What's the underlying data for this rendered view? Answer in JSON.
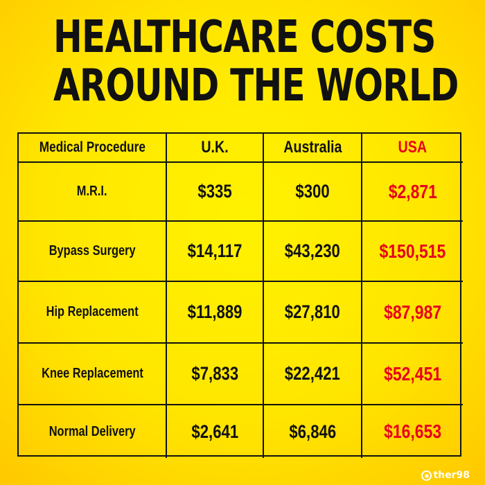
{
  "title": {
    "line1": "HEALTHCARE COSTS",
    "line2": "AROUND THE WORLD"
  },
  "colors": {
    "background": "#ffe600",
    "text": "#111111",
    "highlight": "#e8001c"
  },
  "chart_data": {
    "type": "table",
    "columns": [
      "Medical Procedure",
      "U.K.",
      "Australia",
      "USA"
    ],
    "rows": [
      {
        "procedure": "M.R.I.",
        "uk": "$335",
        "australia": "$300",
        "usa": "$2,871"
      },
      {
        "procedure": "Bypass Surgery",
        "uk": "$14,117",
        "australia": "$43,230",
        "usa": "$150,515"
      },
      {
        "procedure": "Hip Replacement",
        "uk": "$11,889",
        "australia": "$27,810",
        "usa": "$87,987"
      },
      {
        "procedure": "Knee Replacement",
        "uk": "$7,833",
        "australia": "$22,421",
        "usa": "$52,451"
      },
      {
        "procedure": "Normal Delivery",
        "uk": "$2,641",
        "australia": "$6,846",
        "usa": "$16,653"
      }
    ]
  },
  "footer": {
    "brand": "ther98",
    "logo_icon": "brand-logo-icon"
  }
}
